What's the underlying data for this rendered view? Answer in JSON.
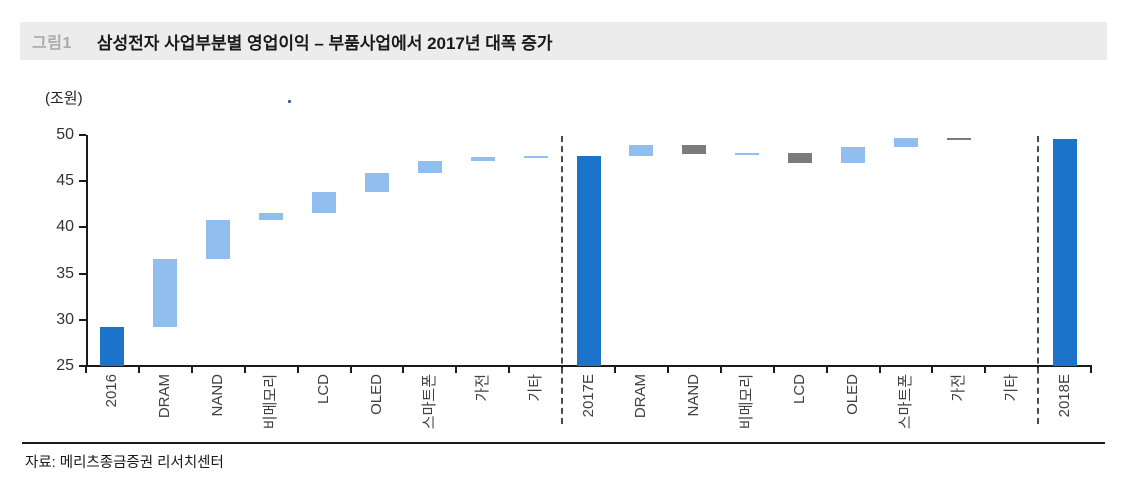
{
  "header": {
    "figure_label": "그림1",
    "title": "삼성전자 사업부분별 영업이익 – 부품사업에서 2017년 대폭 증가"
  },
  "source": "자료: 메리츠종금증권 리서치센터",
  "chart_data": {
    "type": "bar",
    "subtype": "waterfall",
    "title": "삼성전자 사업부분별 영업이익 – 부품사업에서 2017년 대폭 증가",
    "unit_label": "(조원)",
    "xlabel": "",
    "ylabel": "(조원)",
    "ylim": [
      25,
      50
    ],
    "yticks": [
      25,
      30,
      35,
      40,
      45,
      50
    ],
    "grid": false,
    "legend": "none",
    "colors": {
      "total": "#1B74C9",
      "increase": "#8FBEEF",
      "decrease": "#7B7B7B"
    },
    "separator_after_slots": [
      9,
      18
    ],
    "bars": [
      {
        "label": "2016",
        "start": 25,
        "end": 29.2,
        "value": 29.2,
        "role": "total"
      },
      {
        "label": "DRAM",
        "start": 29.2,
        "end": 36.6,
        "value": 7.4,
        "role": "increase"
      },
      {
        "label": "NAND",
        "start": 36.6,
        "end": 40.8,
        "value": 4.2,
        "role": "increase"
      },
      {
        "label": "비메모리",
        "start": 40.8,
        "end": 41.6,
        "value": 0.8,
        "role": "increase"
      },
      {
        "label": "LCD",
        "start": 41.6,
        "end": 43.8,
        "value": 2.2,
        "role": "increase"
      },
      {
        "label": "OLED",
        "start": 43.8,
        "end": 45.9,
        "value": 2.1,
        "role": "increase"
      },
      {
        "label": "스마트폰",
        "start": 45.9,
        "end": 47.2,
        "value": 1.3,
        "role": "increase"
      },
      {
        "label": "가전",
        "start": 47.2,
        "end": 47.6,
        "value": 0.4,
        "role": "increase"
      },
      {
        "label": "기타",
        "start": 47.6,
        "end": 47.7,
        "value": 0.1,
        "role": "increase"
      },
      {
        "label": "2017E",
        "start": 25,
        "end": 47.7,
        "value": 47.7,
        "role": "total"
      },
      {
        "label": "DRAM",
        "start": 47.7,
        "end": 48.9,
        "value": 1.2,
        "role": "increase"
      },
      {
        "label": "NAND",
        "start": 48.9,
        "end": 47.9,
        "value": -1.0,
        "role": "decrease"
      },
      {
        "label": "비메모리",
        "start": 47.9,
        "end": 48.1,
        "value": 0.2,
        "role": "increase"
      },
      {
        "label": "LCD",
        "start": 48.1,
        "end": 47.0,
        "value": -1.1,
        "role": "decrease"
      },
      {
        "label": "OLED",
        "start": 47.0,
        "end": 48.7,
        "value": 1.7,
        "role": "increase"
      },
      {
        "label": "스마트폰",
        "start": 48.7,
        "end": 49.7,
        "value": 1.0,
        "role": "increase"
      },
      {
        "label": "가전",
        "start": 49.7,
        "end": 49.6,
        "value": -0.1,
        "role": "decrease"
      },
      {
        "label": "기타",
        "start": 49.6,
        "end": 49.6,
        "value": 0,
        "role": "none"
      },
      {
        "label": "2018E",
        "start": 25,
        "end": 49.6,
        "value": 49.6,
        "role": "total"
      }
    ]
  }
}
